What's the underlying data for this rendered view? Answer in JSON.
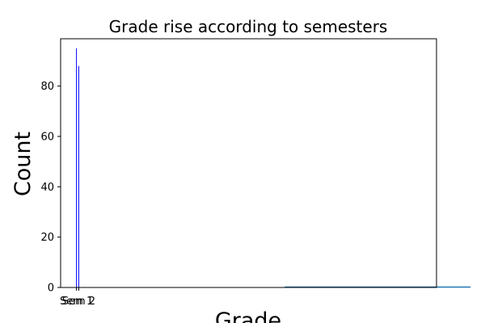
{
  "chart_data": {
    "type": "bar",
    "title": "Grade rise according to semesters",
    "xlabel": "Grade",
    "ylabel": "Count",
    "categories": [
      "Sem 1",
      "Sem 2"
    ],
    "series": [
      {
        "values": [
          95,
          88
        ],
        "color": "#0000ff"
      }
    ],
    "ylim": [
      0,
      98.8
    ],
    "yticks": [
      0,
      20,
      40,
      60,
      80
    ],
    "flat_line": {
      "x_start": 92,
      "x_end": 174,
      "y": 0,
      "color": "#1f77b4"
    },
    "xlim": [
      -7,
      159
    ],
    "grid": false
  }
}
